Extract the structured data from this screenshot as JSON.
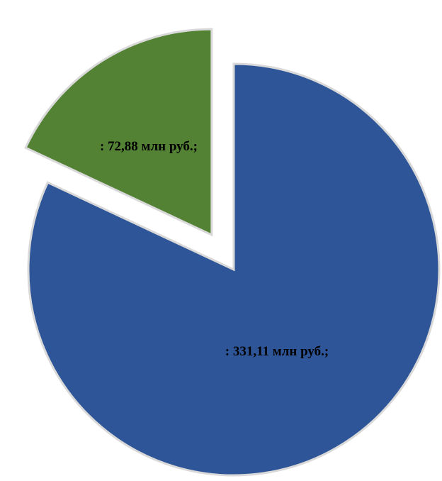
{
  "chart_data": {
    "type": "pie",
    "title": "",
    "legend": "none",
    "slices": [
      {
        "label": "",
        "value": 331.11,
        "data_label": ": 331,11 млн руб.;",
        "color": "#2e5597",
        "exploded": false
      },
      {
        "label": "",
        "value": 72.88,
        "data_label": ": 72,88 млн руб.;",
        "color": "#548235",
        "exploded": true
      }
    ]
  }
}
